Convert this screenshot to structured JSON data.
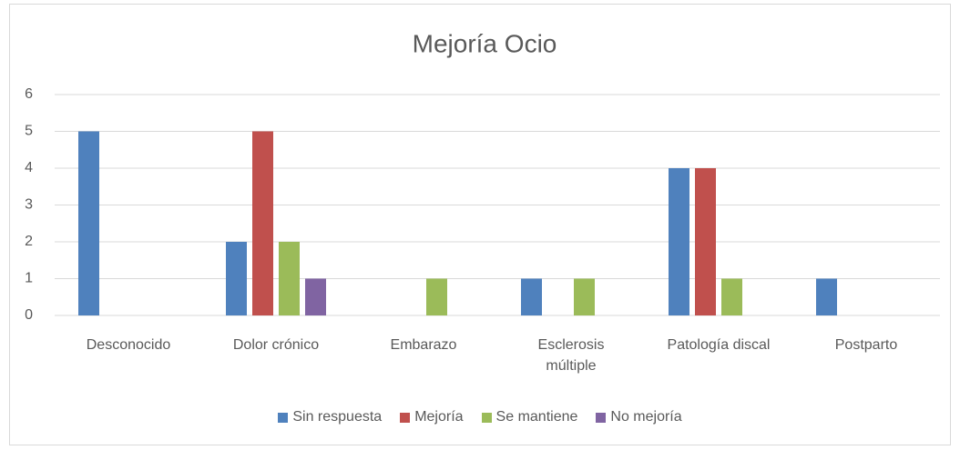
{
  "chart_data": {
    "type": "bar",
    "title": "Mejoría Ocio",
    "categories": [
      "Desconocido",
      "Dolor crónico",
      "Embarazo",
      "Esclerosis múltiple",
      "Patología discal",
      "Postparto"
    ],
    "series": [
      {
        "name": "Sin respuesta",
        "color": "#4f81bd",
        "values": [
          5,
          2,
          0,
          1,
          4,
          1
        ]
      },
      {
        "name": "Mejoría",
        "color": "#c0504d",
        "values": [
          0,
          5,
          0,
          0,
          4,
          0
        ]
      },
      {
        "name": "Se mantiene",
        "color": "#9bbb59",
        "values": [
          0,
          2,
          1,
          1,
          1,
          0
        ]
      },
      {
        "name": "No mejoría",
        "color": "#8064a2",
        "values": [
          0,
          1,
          0,
          0,
          0,
          0
        ]
      }
    ],
    "ylim": [
      0,
      6
    ],
    "yticks": [
      0,
      1,
      2,
      3,
      4,
      5,
      6
    ],
    "grid": true,
    "legend": "bottom"
  }
}
